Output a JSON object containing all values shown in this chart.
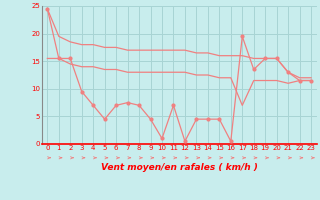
{
  "xlabel": "Vent moyen/en rafales ( km/h )",
  "background_color": "#c8eded",
  "grid_color": "#a8d4d4",
  "line_color": "#f08080",
  "arrow_color": "#f08080",
  "x_values": [
    0,
    1,
    2,
    3,
    4,
    5,
    6,
    7,
    8,
    9,
    10,
    11,
    12,
    13,
    14,
    15,
    16,
    17,
    18,
    19,
    20,
    21,
    22,
    23
  ],
  "y_mean": [
    24.5,
    15.5,
    15.5,
    9.5,
    7.0,
    4.5,
    7.0,
    7.5,
    7.0,
    4.5,
    1.0,
    7.0,
    0.5,
    4.5,
    4.5,
    4.5,
    0.5,
    19.5,
    13.5,
    15.5,
    15.5,
    13.0,
    11.5,
    11.5
  ],
  "y_trend1": [
    24.5,
    19.5,
    18.5,
    18.0,
    18.0,
    17.5,
    17.5,
    17.0,
    17.0,
    17.0,
    17.0,
    17.0,
    17.0,
    16.5,
    16.5,
    16.0,
    16.0,
    16.0,
    15.5,
    15.5,
    15.5,
    13.0,
    12.0,
    12.0
  ],
  "y_trend2": [
    15.5,
    15.5,
    14.5,
    14.0,
    14.0,
    13.5,
    13.5,
    13.0,
    13.0,
    13.0,
    13.0,
    13.0,
    13.0,
    12.5,
    12.5,
    12.0,
    12.0,
    7.0,
    11.5,
    11.5,
    11.5,
    11.0,
    11.5,
    11.5
  ],
  "ylim": [
    0,
    25
  ],
  "xlim": [
    -0.5,
    23.5
  ],
  "yticks": [
    0,
    5,
    10,
    15,
    20,
    25
  ],
  "xticks": [
    0,
    1,
    2,
    3,
    4,
    5,
    6,
    7,
    8,
    9,
    10,
    11,
    12,
    13,
    14,
    15,
    16,
    17,
    18,
    19,
    20,
    21,
    22,
    23
  ],
  "tick_fontsize": 5.0,
  "xlabel_fontsize": 6.5
}
